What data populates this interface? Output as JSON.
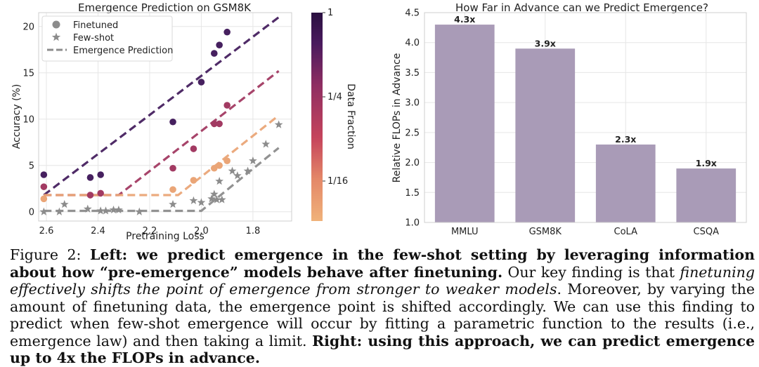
{
  "chart_data": [
    {
      "type": "scatter",
      "title": "Emergence Prediction on GSM8K",
      "xlabel": "Pretraining Loss",
      "ylabel": "Accuracy (%)",
      "xlim": [
        2.63,
        1.65
      ],
      "ylim": [
        -1,
        21.5
      ],
      "x_ticks": [
        2.6,
        2.4,
        2.2,
        2.0,
        1.8
      ],
      "x_tick_labels": [
        "2.6",
        "2.4",
        "2.2",
        "2.0",
        "1.8"
      ],
      "y_ticks": [
        0,
        5,
        10,
        15,
        20
      ],
      "y_tick_labels": [
        "0",
        "5",
        "10",
        "15",
        "20"
      ],
      "grid": true,
      "legend": {
        "position": "top-left",
        "entries": [
          {
            "label": "Finetuned",
            "marker": "circle",
            "color": "#8c8c8c"
          },
          {
            "label": "Few-shot",
            "marker": "star",
            "color": "#8c8c8c"
          },
          {
            "label": "Emergence Prediction",
            "marker": "dashed-line",
            "color": "#8c8c8c"
          }
        ]
      },
      "colorbar": {
        "label": "Data Fraction",
        "ticks": [
          "1",
          "1/4",
          "1/16"
        ],
        "gradient": [
          "#f0b27a",
          "#e48868",
          "#c5445c",
          "#8f2e62",
          "#4a1a5e",
          "#2a1040"
        ]
      },
      "series": [
        {
          "name": "Finetuned (1)",
          "color": "#46205f",
          "marker": "circle",
          "x": [
            2.61,
            2.43,
            2.39,
            2.11,
            2.0,
            1.95,
            1.93,
            1.9
          ],
          "y": [
            4.0,
            3.7,
            4.0,
            9.7,
            14.0,
            17.1,
            18.0,
            19.4
          ],
          "fit": {
            "plateau": 1.8,
            "x_break": 2.61,
            "x_end": 1.7,
            "y_end": 21.0
          }
        },
        {
          "name": "Finetuned (1/4)",
          "color": "#a23a62",
          "marker": "circle",
          "x": [
            2.61,
            2.43,
            2.39,
            2.11,
            2.03,
            1.95,
            1.93,
            1.9
          ],
          "y": [
            2.7,
            1.8,
            2.0,
            4.7,
            6.8,
            9.5,
            9.5,
            11.5
          ],
          "fit": {
            "plateau": 1.8,
            "x_break": 2.32,
            "x_end": 1.7,
            "y_end": 15.2
          }
        },
        {
          "name": "Finetuned (1/16)",
          "color": "#eaa577",
          "marker": "circle",
          "x": [
            2.61,
            2.11,
            2.03,
            1.95,
            1.93,
            1.9
          ],
          "y": [
            1.4,
            2.4,
            3.4,
            4.7,
            5.0,
            5.5
          ],
          "fit": {
            "plateau": 1.8,
            "x_break": 2.09,
            "x_end": 1.7,
            "y_end": 10.4
          }
        },
        {
          "name": "Few-shot",
          "color": "#8c8c8c",
          "marker": "star",
          "x": [
            2.61,
            2.55,
            2.53,
            2.44,
            2.39,
            2.37,
            2.34,
            2.32,
            2.24,
            2.11,
            2.03,
            2.0,
            1.96,
            1.95,
            1.94,
            1.93,
            1.92,
            1.88,
            1.86,
            1.82,
            1.8,
            1.75,
            1.7
          ],
          "y": [
            0.0,
            0.0,
            0.8,
            0.3,
            0.1,
            0.1,
            0.2,
            0.2,
            0.0,
            0.8,
            1.2,
            1.0,
            1.4,
            1.9,
            1.3,
            3.3,
            1.3,
            4.4,
            3.9,
            4.4,
            5.5,
            7.3,
            9.4
          ],
          "fit": {
            "plateau": 0.1,
            "x_break": 2.0,
            "x_end": 1.7,
            "y_end": 6.9
          }
        }
      ]
    },
    {
      "type": "bar",
      "title": "How Far in Advance can we Predict Emergence?",
      "xlabel": "",
      "ylabel": "Relative FLOPs in Advance",
      "ylim": [
        1.0,
        4.5
      ],
      "y_ticks": [
        1.0,
        1.5,
        2.0,
        2.5,
        3.0,
        3.5,
        4.0,
        4.5
      ],
      "y_tick_labels": [
        "1.0",
        "1.5",
        "2.0",
        "2.5",
        "3.0",
        "3.5",
        "4.0",
        "4.5"
      ],
      "categories": [
        "MMLU",
        "GSM8K",
        "CoLA",
        "CSQA"
      ],
      "values": [
        4.3,
        3.9,
        2.3,
        1.9
      ],
      "data_labels": [
        "4.3x",
        "3.9x",
        "2.3x",
        "1.9x"
      ],
      "bar_color": "#a99bb7",
      "grid": true
    }
  ],
  "caption": {
    "prefix": "Figure 2:",
    "left_bold": "Left: we predict emergence in the few-shot setting by leveraging information about how “pre-emergence” models behave after finetuning.",
    "text1": "Our key finding is that",
    "italic": "finetuning effectively shifts the point of emergence from stronger to weaker models",
    "text2": ". Moreover, by varying the amount of finetuning data, the emergence point is shifted accordingly. We can use this finding to predict when few-shot emergence will occur by fitting a parametric function to the results (i.e., emergence law) and then taking a limit.",
    "right_bold": "Right: using this approach, we can predict emergence up to 4x the FLOPs in advance."
  }
}
